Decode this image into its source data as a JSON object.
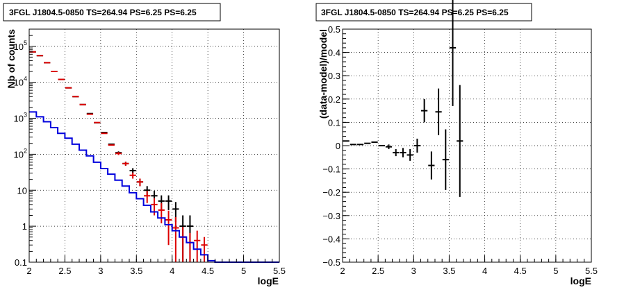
{
  "chart_data": [
    {
      "type": "scatter",
      "title": "3FGL J1804.5-0850 TS=264.94 PS=6.25 PS=6.25",
      "xlabel": "logE",
      "ylabel": "Nb of counts",
      "log_y": true,
      "grid": true,
      "xlim": [
        2,
        5.5
      ],
      "ylim": [
        0.1,
        300000
      ],
      "x_ticks": [
        "2",
        "2.5",
        "3",
        "3.5",
        "4",
        "4.5",
        "5",
        "5.5"
      ],
      "y_ticks": [
        "0.1",
        "1",
        "10",
        "10^2",
        "10^3",
        "10^4",
        "10^5"
      ],
      "bin_width": 0.1,
      "series": [
        {
          "color": "#000000",
          "kind": "error-bars",
          "points": [
            [
              2.05,
              70000,
              0
            ],
            [
              2.15,
              55000,
              0
            ],
            [
              2.25,
              35000,
              0
            ],
            [
              2.35,
              20000,
              0
            ],
            [
              2.45,
              12000,
              0
            ],
            [
              2.55,
              7000,
              0
            ],
            [
              2.65,
              4000,
              0
            ],
            [
              2.75,
              2400,
              0
            ],
            [
              2.85,
              1350,
              0
            ],
            [
              2.95,
              750,
              0
            ],
            [
              3.05,
              400,
              0
            ],
            [
              3.15,
              190,
              0
            ],
            [
              3.25,
              110,
              10
            ],
            [
              3.35,
              55,
              7
            ],
            [
              3.45,
              35,
              6
            ],
            [
              3.55,
              17,
              4
            ],
            [
              3.65,
              10,
              3
            ],
            [
              3.75,
              7,
              2.7
            ],
            [
              3.85,
              5,
              2.2
            ],
            [
              3.95,
              5,
              2.2
            ],
            [
              4.05,
              3,
              1.7
            ],
            [
              4.15,
              1,
              1
            ],
            [
              4.25,
              1,
              1
            ]
          ]
        },
        {
          "color": "#dd0000",
          "kind": "error-bars",
          "points": [
            [
              2.05,
              70000,
              0
            ],
            [
              2.15,
              55000,
              0
            ],
            [
              2.25,
              35000,
              0
            ],
            [
              2.35,
              20000,
              0
            ],
            [
              2.45,
              12000,
              0
            ],
            [
              2.55,
              7000,
              0
            ],
            [
              2.65,
              4000,
              0
            ],
            [
              2.75,
              2400,
              0
            ],
            [
              2.85,
              1300,
              0
            ],
            [
              2.95,
              760,
              0
            ],
            [
              3.05,
              380,
              0
            ],
            [
              3.15,
              180,
              0
            ],
            [
              3.25,
              105,
              10
            ],
            [
              3.35,
              55,
              7
            ],
            [
              3.45,
              26,
              5
            ],
            [
              3.55,
              17,
              4
            ],
            [
              3.65,
              7,
              2.6
            ],
            [
              3.75,
              4,
              2
            ],
            [
              3.85,
              2.8,
              1.6
            ],
            [
              3.95,
              1.5,
              1.2
            ],
            [
              4.05,
              0.9,
              0.9
            ],
            [
              4.15,
              0.5,
              0.45
            ],
            [
              4.25,
              0.35,
              0.3
            ],
            [
              4.35,
              0.4,
              0.35
            ],
            [
              4.45,
              0.3,
              0.2
            ]
          ]
        },
        {
          "color": "#0000dd",
          "kind": "step",
          "edges": [
            2.0,
            2.1,
            2.2,
            2.3,
            2.4,
            2.5,
            2.6,
            2.7,
            2.8,
            2.9,
            3.0,
            3.1,
            3.2,
            3.3,
            3.4,
            3.5,
            3.6,
            3.7,
            3.8,
            3.9,
            4.0,
            4.1,
            4.2,
            4.3,
            4.4,
            4.5,
            4.6,
            4.7,
            4.8,
            4.9,
            5.0,
            5.1,
            5.2,
            5.3,
            5.4,
            5.5
          ],
          "values": [
            1500,
            1100,
            800,
            550,
            380,
            280,
            190,
            130,
            90,
            60,
            40,
            28,
            19,
            13,
            8.5,
            5.8,
            3.8,
            2.5,
            1.7,
            1.1,
            0.75,
            0.5,
            0.35,
            0.23,
            0.16,
            0.11,
            0.1,
            0.1,
            0.1,
            0.1,
            0.1,
            0.1,
            0.1,
            0.1,
            0.1
          ]
        }
      ]
    },
    {
      "type": "scatter",
      "title": "3FGL J1804.5-0850 TS=264.94 PS=6.25 PS=6.25",
      "xlabel": "logE",
      "ylabel": "(data-model)/model",
      "log_y": false,
      "grid": true,
      "xlim": [
        2,
        5.5
      ],
      "ylim": [
        -0.5,
        0.5
      ],
      "x_ticks": [
        "2",
        "2.5",
        "3",
        "3.5",
        "4",
        "4.5",
        "5",
        "5.5"
      ],
      "y_ticks": [
        "−0.5",
        "−0.4",
        "−0.3",
        "−0.2",
        "−0.1",
        "0",
        "0.1",
        "0.2",
        "0.3",
        "0.4",
        "0.5"
      ],
      "bin_width": 0.1,
      "series": [
        {
          "color": "#000000",
          "kind": "error-bars",
          "points": [
            [
              2.05,
              0.02,
              0
            ],
            [
              2.15,
              0.005,
              0
            ],
            [
              2.25,
              0.005,
              0
            ],
            [
              2.35,
              0.01,
              0
            ],
            [
              2.45,
              0.015,
              0
            ],
            [
              2.55,
              0.0,
              0
            ],
            [
              2.65,
              -0.005,
              0.01
            ],
            [
              2.75,
              -0.03,
              0.015
            ],
            [
              2.85,
              -0.03,
              0.02
            ],
            [
              2.95,
              -0.04,
              0.025
            ],
            [
              3.05,
              0.0,
              0.03
            ],
            [
              3.15,
              0.15,
              0.05
            ],
            [
              3.25,
              -0.085,
              0.06
            ],
            [
              3.35,
              0.145,
              0.1
            ],
            [
              3.45,
              -0.06,
              0.13
            ],
            [
              3.55,
              0.42,
              0.25
            ],
            [
              3.65,
              0.02,
              0.24
            ]
          ]
        }
      ]
    }
  ]
}
